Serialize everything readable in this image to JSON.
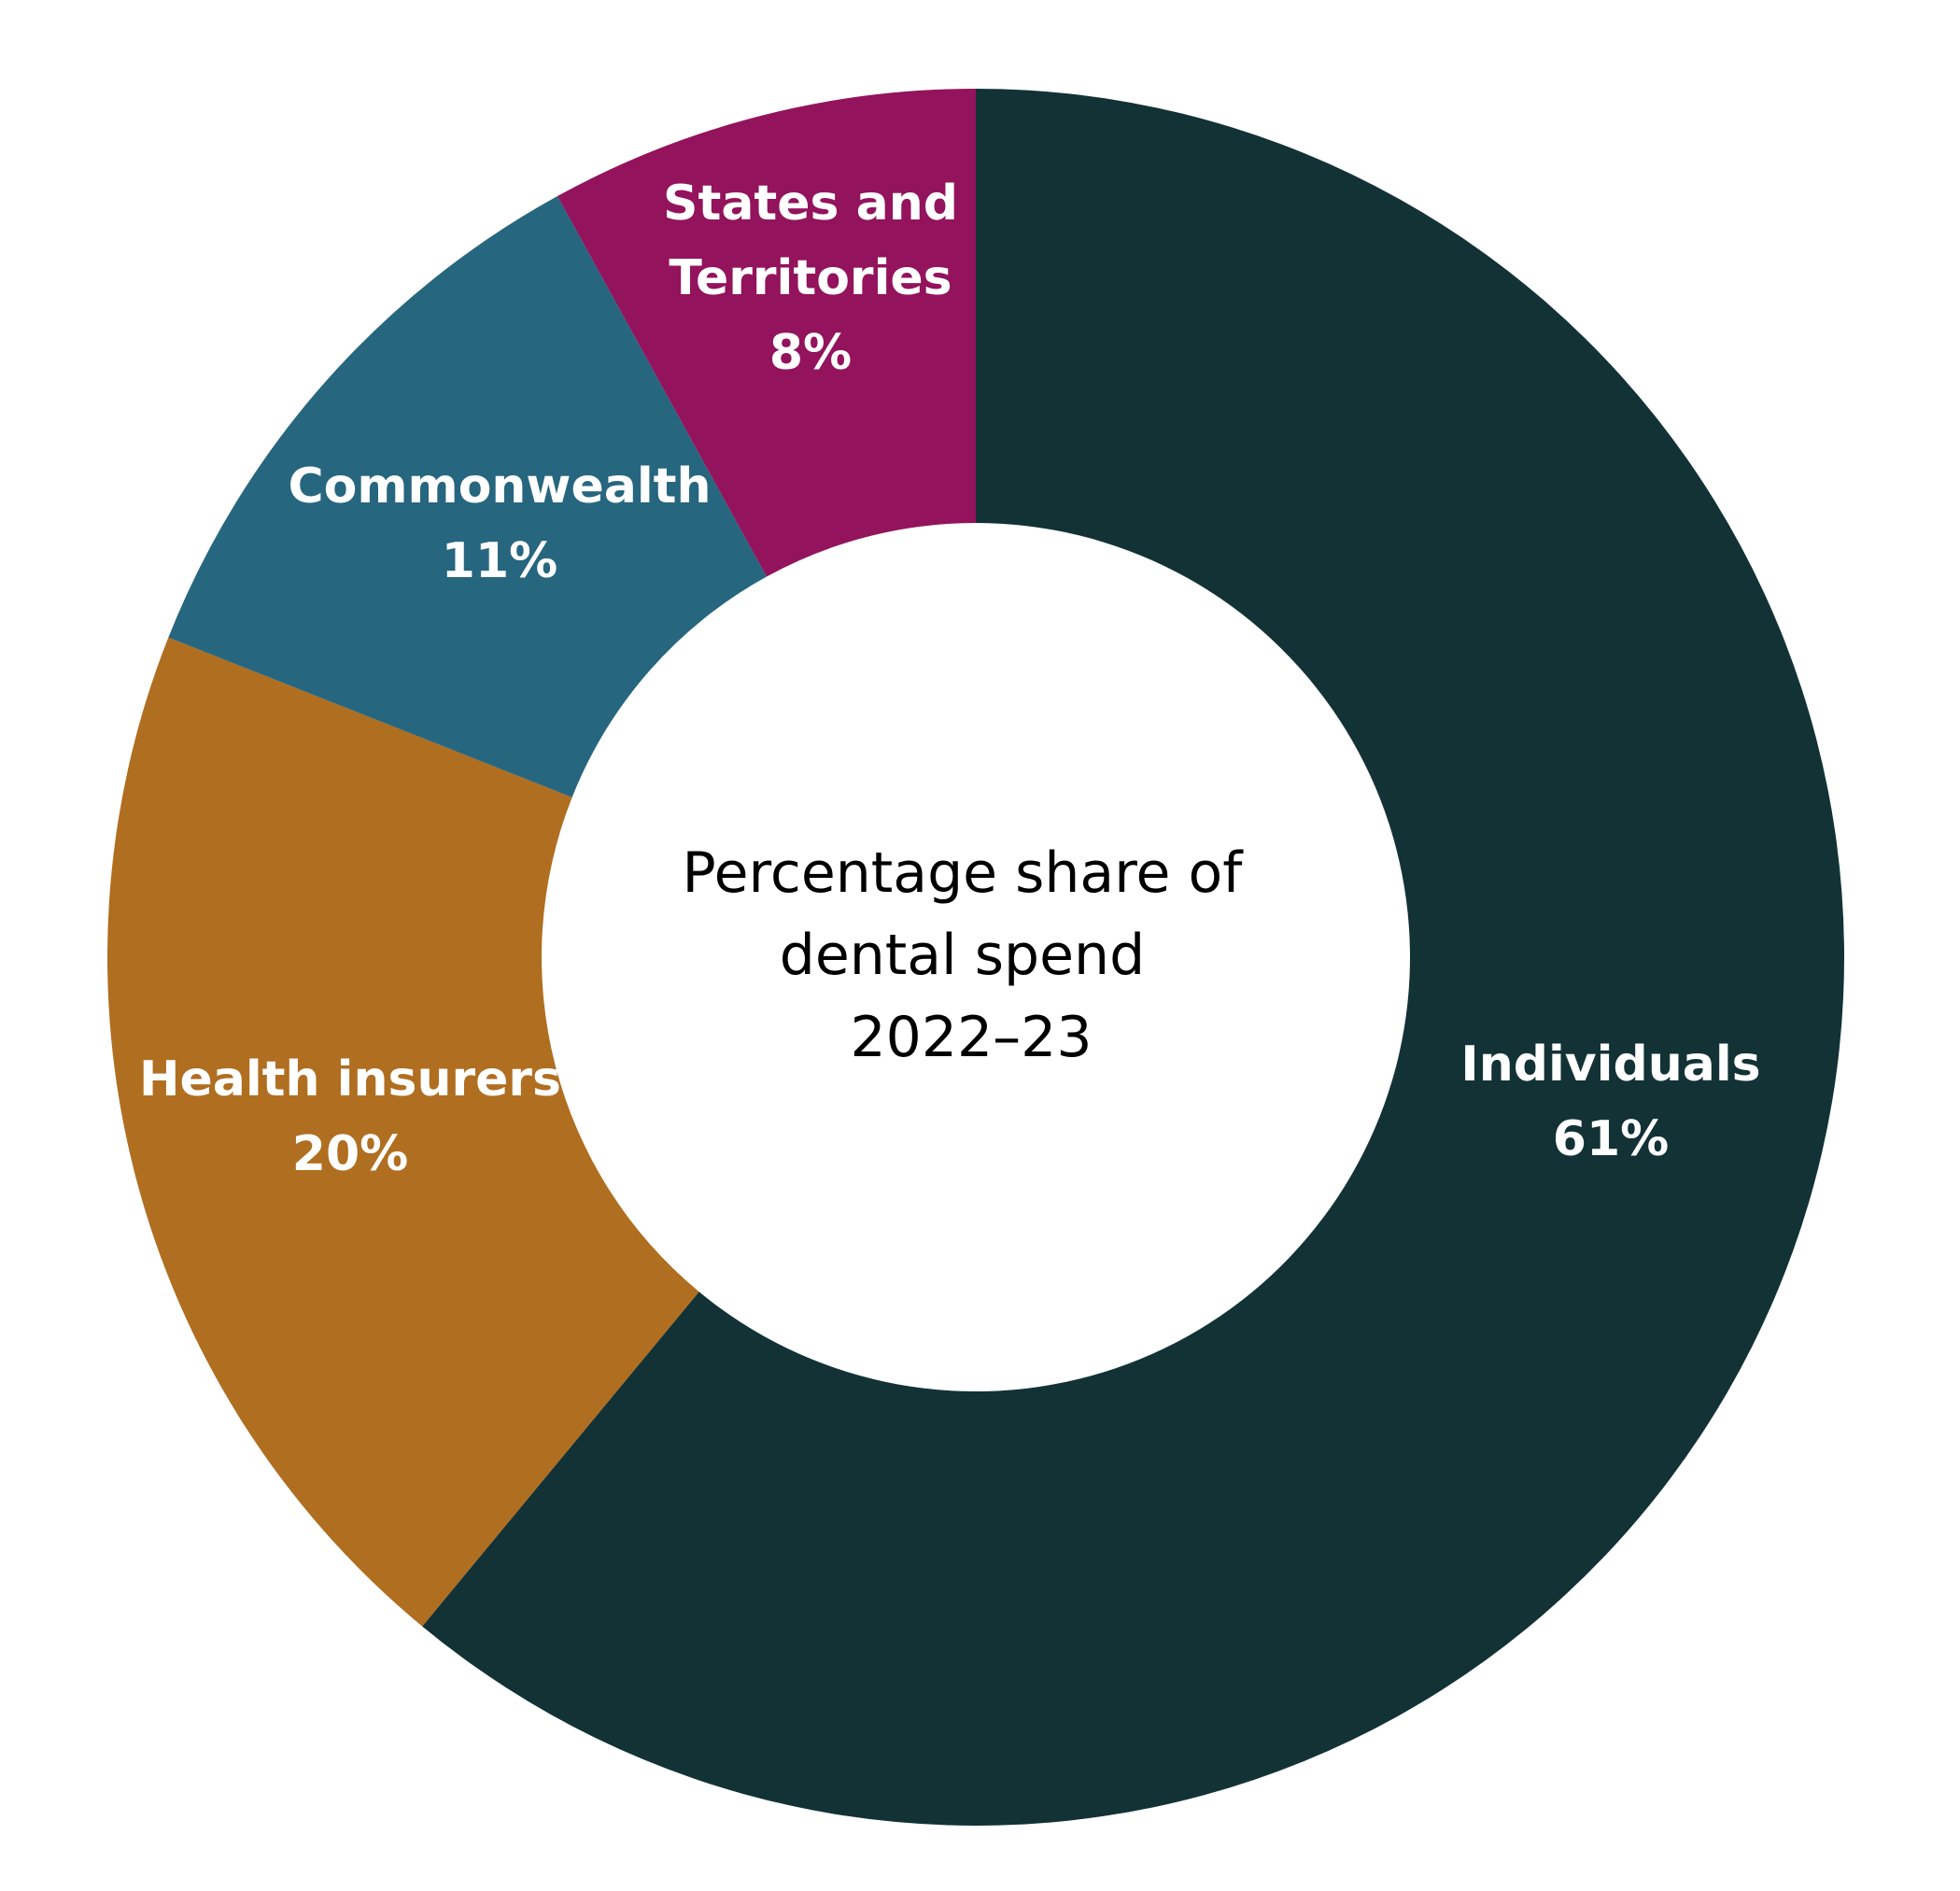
{
  "chart_data": {
    "type": "pie",
    "donut": true,
    "center_label": [
      "Percentage share of",
      "dental spend",
      "2022–23"
    ],
    "slices": [
      {
        "name": "Individuals",
        "value": 61,
        "value_label": "61%",
        "color": "#123236"
      },
      {
        "name": "Health insurers",
        "value": 20,
        "value_label": "20%",
        "color": "#B06E20"
      },
      {
        "name": "Commonwealth",
        "value": 11,
        "value_label": "11%",
        "color": "#27667F"
      },
      {
        "name": "States and Territories",
        "value": 8,
        "value_label": "8%",
        "color": "#93135C"
      }
    ]
  }
}
